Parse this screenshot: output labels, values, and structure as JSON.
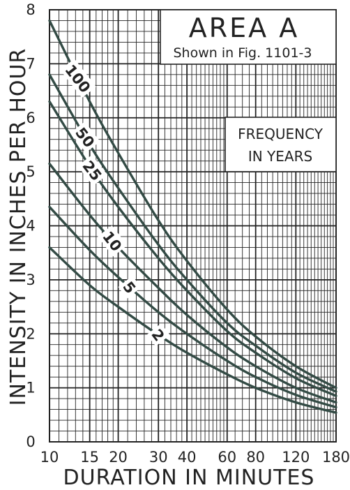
{
  "chart_data": {
    "type": "line",
    "x_scale": "log",
    "xlabel": "DURATION IN MINUTES",
    "ylabel": "INTENSITY IN INCHES PER HOUR",
    "xlim": [
      10,
      180
    ],
    "ylim": [
      0,
      8
    ],
    "x_ticks": [
      10,
      15,
      20,
      30,
      40,
      60,
      80,
      120,
      180
    ],
    "y_ticks": [
      0,
      1,
      2,
      3,
      4,
      5,
      6,
      7,
      8
    ],
    "grid": true,
    "annotations": {
      "title": "AREA A",
      "subtitle": "Shown in Fig. 1101-3",
      "legend_title_line1": "FREQUENCY",
      "legend_title_line2": "IN YEARS"
    },
    "series": [
      {
        "name": "100",
        "x": [
          10,
          15,
          20,
          30,
          40,
          60,
          80,
          120,
          180
        ],
        "y": [
          7.8,
          6.3,
          5.35,
          4.1,
          3.35,
          2.45,
          1.95,
          1.4,
          1.0
        ]
      },
      {
        "name": "50",
        "x": [
          10,
          15,
          20,
          30,
          40,
          60,
          80,
          120,
          180
        ],
        "y": [
          6.8,
          5.5,
          4.7,
          3.65,
          3.0,
          2.2,
          1.78,
          1.28,
          0.93
        ]
      },
      {
        "name": "25",
        "x": [
          10,
          15,
          20,
          30,
          40,
          60,
          80,
          120,
          180
        ],
        "y": [
          6.3,
          5.1,
          4.35,
          3.4,
          2.8,
          2.05,
          1.65,
          1.18,
          0.85
        ]
      },
      {
        "name": "10",
        "x": [
          10,
          15,
          20,
          30,
          40,
          60,
          80,
          120,
          180
        ],
        "y": [
          5.15,
          4.2,
          3.6,
          2.85,
          2.35,
          1.75,
          1.4,
          1.0,
          0.73
        ]
      },
      {
        "name": "5",
        "x": [
          10,
          15,
          20,
          30,
          40,
          60,
          80,
          120,
          180
        ],
        "y": [
          4.35,
          3.55,
          3.05,
          2.4,
          2.0,
          1.5,
          1.2,
          0.87,
          0.64
        ]
      },
      {
        "name": "2",
        "x": [
          10,
          15,
          20,
          30,
          40,
          60,
          80,
          120,
          180
        ],
        "y": [
          3.6,
          2.9,
          2.5,
          1.98,
          1.65,
          1.25,
          1.0,
          0.73,
          0.54
        ]
      }
    ]
  }
}
